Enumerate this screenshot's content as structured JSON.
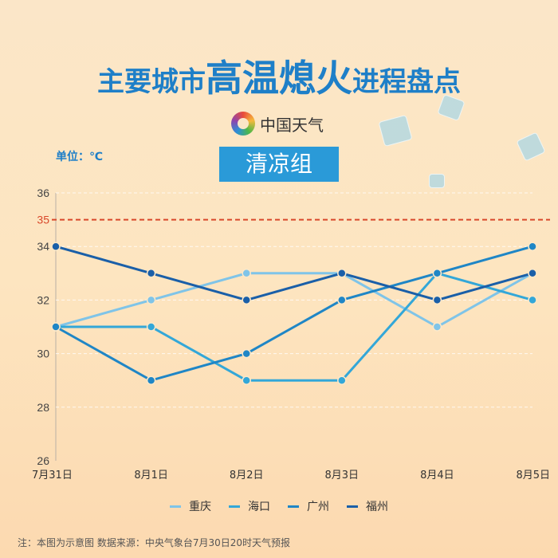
{
  "header": {
    "title_small_left": "主要城市",
    "title_big": "高温熄火",
    "title_small_right": "进程盘点",
    "logo_text": "中国天气",
    "unit": "单位：℃",
    "group": "清凉组"
  },
  "footer": "注：本图为示意图 数据来源：中央气象台7月30日20时天气预报",
  "chart_data": {
    "type": "line",
    "categories": [
      "7月31日",
      "8月1日",
      "8月2日",
      "8月3日",
      "8月4日",
      "8月5日"
    ],
    "ylim": [
      26,
      36
    ],
    "yticks": [
      26,
      28,
      30,
      32,
      34,
      36
    ],
    "threshold": {
      "value": 35,
      "label": "35",
      "color": "#d9482b"
    },
    "grid": true,
    "legend_position": "bottom",
    "series": [
      {
        "name": "重庆",
        "color": "#7fc4e8",
        "values": [
          31,
          32,
          33,
          33,
          31,
          33
        ]
      },
      {
        "name": "海口",
        "color": "#33a7d8",
        "values": [
          31,
          31,
          29,
          29,
          33,
          32
        ]
      },
      {
        "name": "广州",
        "color": "#1f86c6",
        "values": [
          31,
          29,
          30,
          32,
          33,
          34
        ]
      },
      {
        "name": "福州",
        "color": "#1a5fa8",
        "values": [
          34,
          33,
          32,
          33,
          32,
          33
        ]
      }
    ]
  }
}
